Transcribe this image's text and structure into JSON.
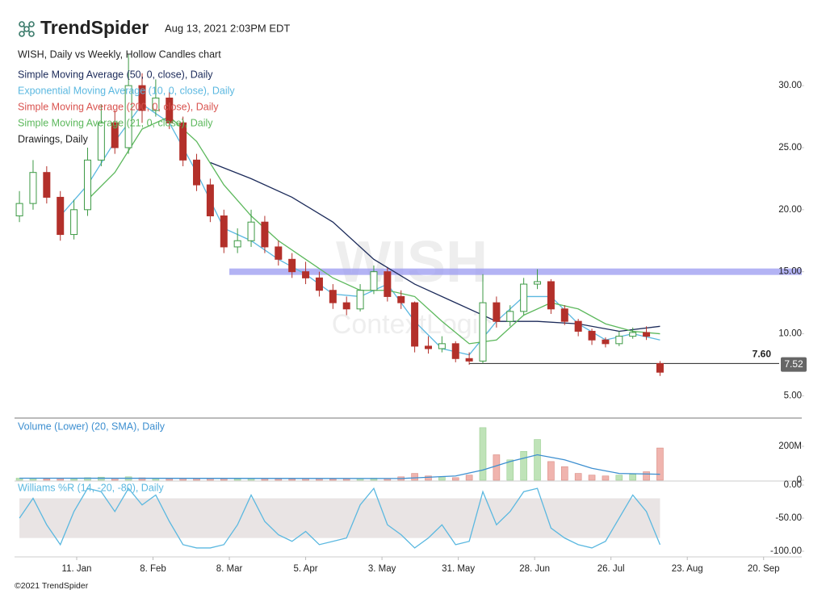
{
  "header": {
    "brand": "TrendSpider",
    "timestamp": "Aug 13, 2021 2:03PM EDT"
  },
  "footer": "©2021 TrendSpider",
  "chart_data": [
    {
      "type": "candlestick",
      "title": "WISH, Daily vs Weekly, Hollow Candles chart",
      "watermark": "WISH",
      "watermark_subtitle": "ContextLogic",
      "up_color": "#3d9a45",
      "down_color": "#b3302a",
      "xlim": [
        -11.8,
        277
      ],
      "ylim": [
        3.4,
        35.6
      ],
      "yticks": [
        {
          "value": 5,
          "label": "5.00"
        },
        {
          "value": 10,
          "label": "10.00"
        },
        {
          "value": 15,
          "label": "15.00"
        },
        {
          "value": 20,
          "label": "20.00"
        },
        {
          "value": 25,
          "label": "25.00"
        },
        {
          "value": 30,
          "label": "30.00"
        }
      ],
      "x": [
        -10,
        -5,
        0,
        5,
        10,
        15,
        20,
        25,
        30,
        35,
        40,
        45,
        50,
        55,
        60,
        65,
        70,
        75,
        80,
        85,
        90,
        95,
        100,
        105,
        110,
        115,
        120,
        125,
        130,
        135,
        140,
        145,
        150,
        155,
        160,
        165,
        170,
        175,
        180,
        185,
        190,
        195,
        200,
        205,
        210,
        215,
        220,
        225
      ],
      "open": [
        19.5,
        20.5,
        23,
        21,
        18,
        20,
        24,
        27,
        25,
        30,
        28,
        29,
        27,
        24,
        22,
        19.5,
        17,
        17.5,
        19,
        17,
        16,
        15,
        14.5,
        13.5,
        12.5,
        12,
        13.5,
        15,
        13,
        12.5,
        9,
        8.8,
        9.2,
        8,
        7.8,
        12.5,
        11,
        11.8,
        14,
        14.2,
        12,
        11,
        10.2,
        9.5,
        9.2,
        9.8,
        10.1,
        7.6
      ],
      "high": [
        21.5,
        24,
        23.5,
        21.5,
        20.8,
        25,
        28.5,
        28,
        32.5,
        31,
        30.5,
        29.5,
        27.5,
        24.5,
        22.5,
        20,
        18.5,
        20,
        19.5,
        17.5,
        16.5,
        15.8,
        15,
        14,
        13,
        14,
        15.5,
        15.3,
        13.5,
        12.6,
        9.8,
        9.8,
        9.4,
        8.5,
        14.8,
        13,
        12.3,
        14.5,
        15.2,
        14.4,
        12.3,
        11.2,
        10.4,
        9.7,
        10.2,
        10.5,
        10.6,
        7.8
      ],
      "low": [
        19,
        20,
        20.5,
        17.5,
        17.6,
        19.5,
        23.5,
        24.5,
        24.5,
        27,
        27.5,
        26.5,
        23.5,
        21.5,
        19,
        16.5,
        16.5,
        17,
        16.5,
        15.5,
        14.5,
        14,
        13,
        12,
        11.5,
        11.8,
        13.2,
        12.6,
        12,
        8.5,
        8.4,
        8.5,
        7.7,
        7.5,
        7.6,
        10.5,
        10.6,
        11.5,
        13.6,
        11.6,
        10.7,
        9.8,
        9.1,
        8.9,
        9,
        9.6,
        9.5,
        6.6
      ],
      "close": [
        20.5,
        23,
        21,
        18,
        20,
        24,
        27,
        25,
        30,
        28,
        29,
        27,
        24,
        22,
        19.5,
        17,
        17.5,
        19,
        17,
        16,
        15,
        14.5,
        13.5,
        12.5,
        12,
        13.5,
        15,
        13,
        12.5,
        9,
        8.8,
        9.2,
        8,
        7.8,
        12.5,
        11,
        11.8,
        14,
        14.2,
        12,
        11,
        10.2,
        9.5,
        9.2,
        9.8,
        10.1,
        9.8,
        6.9
      ],
      "series": [
        {
          "name": "Simple Moving Average (50, 0, close), Daily",
          "color": "#1c2b5a",
          "x": [
            60,
            75,
            90,
            105,
            120,
            135,
            150,
            165,
            180,
            195,
            210,
            225
          ],
          "values": [
            23.8,
            22.5,
            21,
            19,
            16,
            14,
            12.5,
            11,
            11,
            10.8,
            10.2,
            10.6
          ]
        },
        {
          "name": "Exponential Moving Average (10, 0, close), Daily",
          "color": "#5bb8e0",
          "x": [
            5,
            15,
            25,
            35,
            45,
            55,
            65,
            75,
            85,
            95,
            105,
            115,
            125,
            135,
            145,
            155,
            165,
            175,
            185,
            195,
            205,
            215,
            225
          ],
          "values": [
            19.5,
            22,
            25.5,
            28.5,
            27,
            23,
            18.5,
            17.5,
            16,
            14.8,
            13.2,
            13,
            14,
            11,
            8.8,
            8.3,
            11,
            13,
            13,
            10.8,
            9.5,
            10,
            9.5
          ]
        },
        {
          "name": "Simple Moving Average (200, 0, close), Daily",
          "color": "#d9534f",
          "x": [],
          "values": []
        },
        {
          "name": "Simple Moving Average (21, 0, close), Daily",
          "color": "#5cb85c",
          "x": [
            15,
            25,
            35,
            45,
            55,
            65,
            75,
            85,
            95,
            105,
            115,
            125,
            135,
            145,
            155,
            165,
            175,
            185,
            195,
            205,
            215,
            225
          ],
          "values": [
            20.8,
            23,
            26.5,
            27.5,
            25.5,
            22,
            19.5,
            17.5,
            16,
            14.5,
            13.5,
            13.5,
            13,
            11,
            9.2,
            9.5,
            11.5,
            12.5,
            12,
            10.8,
            10.2,
            10
          ]
        }
      ],
      "drawings_label": "Drawings, Daily",
      "zone": {
        "x_start": 67,
        "value": 15,
        "color": "#9a9af0"
      },
      "level": {
        "x_start": 155,
        "value": 7.6,
        "label": "7.60"
      },
      "last_price": {
        "value": 7.52,
        "label": "7.52"
      }
    },
    {
      "type": "bar",
      "up_color": "#f0b4ae",
      "down_color": "#bfe3b8",
      "xlim": [
        -11.8,
        277
      ],
      "ylim": [
        0,
        357000000
      ],
      "yticks": [
        {
          "value": 0,
          "label": "0"
        },
        {
          "value": 200000000,
          "label": "200M"
        }
      ],
      "x": [
        -10,
        -5,
        0,
        5,
        10,
        15,
        20,
        25,
        30,
        35,
        40,
        45,
        50,
        55,
        60,
        65,
        70,
        75,
        80,
        85,
        90,
        95,
        100,
        105,
        110,
        115,
        120,
        125,
        130,
        135,
        140,
        145,
        150,
        155,
        160,
        165,
        170,
        175,
        180,
        185,
        190,
        195,
        200,
        205,
        210,
        215,
        220,
        225
      ],
      "values": [
        12000000,
        10000000,
        8000000,
        9000000,
        7000000,
        15000000,
        18000000,
        12000000,
        20000000,
        14000000,
        10000000,
        9000000,
        11000000,
        10000000,
        12000000,
        9000000,
        8000000,
        10000000,
        9000000,
        8000000,
        7000000,
        9000000,
        8000000,
        7000000,
        8000000,
        9000000,
        12000000,
        10000000,
        20000000,
        40000000,
        25000000,
        20000000,
        15000000,
        30000000,
        310000000,
        150000000,
        120000000,
        170000000,
        240000000,
        110000000,
        80000000,
        40000000,
        30000000,
        25000000,
        30000000,
        35000000,
        50000000,
        190000000
      ],
      "series": [
        {
          "name": "Volume (Lower) (20, SMA), Daily",
          "color": "#3d8fd0",
          "x": [
            -10,
            130,
            150,
            160,
            170,
            180,
            190,
            200,
            210,
            225
          ],
          "values": [
            12000000,
            10000000,
            25000000,
            60000000,
            110000000,
            150000000,
            120000000,
            70000000,
            40000000,
            35000000
          ]
        }
      ]
    },
    {
      "type": "line",
      "xlim": [
        -11.8,
        277
      ],
      "ylim": [
        -108.5,
        3.7
      ],
      "yticks": [
        {
          "value": 0,
          "label": "0.00"
        },
        {
          "value": -50,
          "label": "-50.00"
        },
        {
          "value": -100,
          "label": "-100.00"
        }
      ],
      "band": [
        -80,
        -20
      ],
      "band_color": "#e9e4e4",
      "xticks": [
        {
          "value": 11,
          "label": "11. Jan"
        },
        {
          "value": 39,
          "label": "8. Feb"
        },
        {
          "value": 67,
          "label": "8. Mar"
        },
        {
          "value": 95,
          "label": "5. Apr"
        },
        {
          "value": 123,
          "label": "3. May"
        },
        {
          "value": 151,
          "label": "31. May"
        },
        {
          "value": 179,
          "label": "28. Jun"
        },
        {
          "value": 207,
          "label": "26. Jul"
        },
        {
          "value": 235,
          "label": "23. Aug"
        },
        {
          "value": 263,
          "label": "20. Sep"
        }
      ],
      "series": [
        {
          "name": "Williams %R (14, -20, -80), Daily",
          "color": "#5bb8e0",
          "x": [
            -10,
            -5,
            0,
            5,
            10,
            15,
            20,
            25,
            30,
            35,
            40,
            45,
            50,
            55,
            60,
            65,
            70,
            75,
            80,
            85,
            90,
            95,
            100,
            105,
            110,
            115,
            120,
            125,
            130,
            135,
            140,
            145,
            150,
            155,
            160,
            165,
            170,
            175,
            180,
            185,
            190,
            195,
            200,
            205,
            210,
            215,
            220,
            225
          ],
          "values": [
            -50,
            -20,
            -60,
            -90,
            -40,
            -5,
            -10,
            -40,
            -5,
            -30,
            -15,
            -55,
            -90,
            -95,
            -95,
            -90,
            -60,
            -15,
            -55,
            -75,
            -85,
            -70,
            -90,
            -85,
            -80,
            -30,
            -5,
            -60,
            -75,
            -95,
            -80,
            -60,
            -90,
            -85,
            -10,
            -60,
            -40,
            -10,
            -5,
            -65,
            -80,
            -90,
            -95,
            -85,
            -50,
            -15,
            -40,
            -90
          ]
        }
      ]
    }
  ]
}
